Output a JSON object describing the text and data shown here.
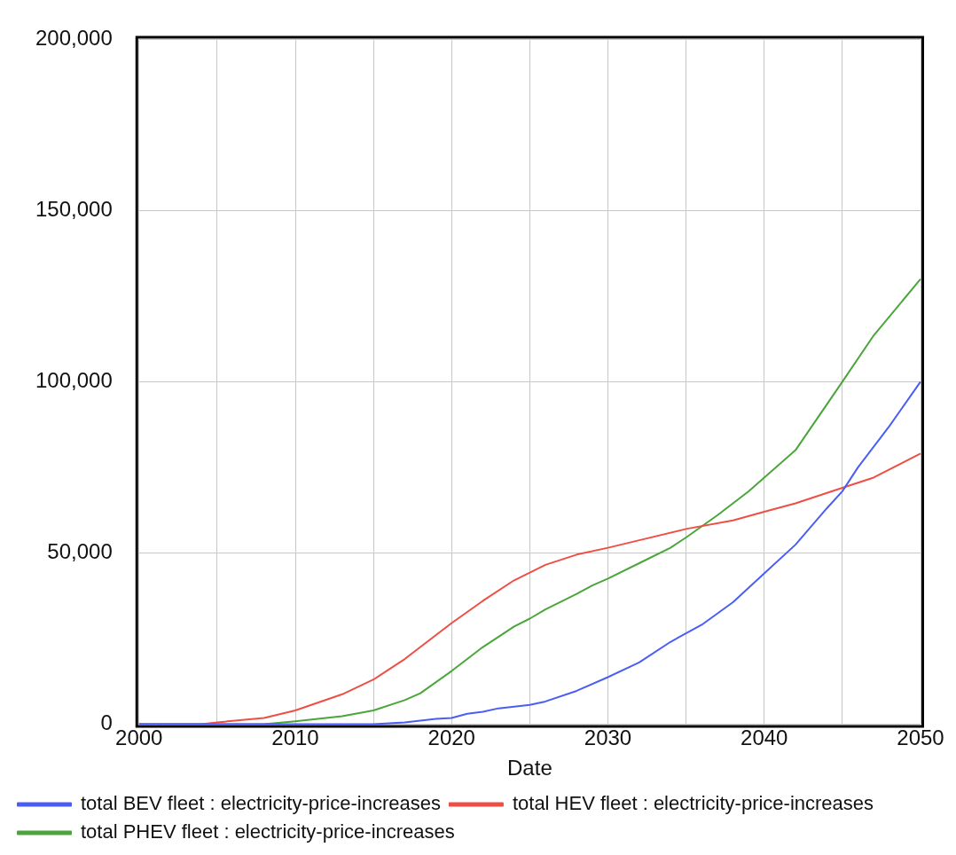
{
  "chart_data": {
    "type": "line",
    "xlabel": "Date",
    "xlim": [
      2000,
      2050
    ],
    "xticks": [
      2000,
      {
        "value": 2005,
        "label": null
      },
      2010,
      {
        "value": 2015,
        "label": null
      },
      2020,
      {
        "value": 2025,
        "label": null
      },
      2030,
      {
        "value": 2035,
        "label": null
      },
      2040,
      {
        "value": 2045,
        "label": null
      },
      2050
    ],
    "ylim": [
      0,
      200000
    ],
    "yticks": [
      {
        "value": 0,
        "label": "0"
      },
      {
        "value": 50000,
        "label": "50,000"
      },
      {
        "value": 100000,
        "label": "100,000"
      },
      {
        "value": 150000,
        "label": "150,000"
      },
      {
        "value": 200000,
        "label": "200,000"
      }
    ],
    "grid": true,
    "legend": "bottom",
    "marker": "none",
    "line_style": "solid",
    "series": [
      {
        "name": "total BEV fleet : electricity-price-increases",
        "color": "#4a5ef5",
        "x": [
          2000,
          2005,
          2010,
          2015,
          2017,
          2019,
          2020,
          2021,
          2022,
          2023,
          2025,
          2026,
          2028,
          2030,
          2032,
          2034,
          2036,
          2038,
          2040,
          2042,
          2044,
          2045,
          2046,
          2048,
          2050
        ],
        "values": [
          0,
          0,
          0,
          0,
          500,
          1500,
          1800,
          3000,
          3600,
          4600,
          5600,
          6600,
          9700,
          13700,
          18000,
          24000,
          29000,
          35600,
          44000,
          52400,
          63000,
          68000,
          75000,
          87000,
          100000
        ]
      },
      {
        "name": "total HEV fleet : electricity-price-increases",
        "color": "#ee4f44",
        "x": [
          2000,
          2004,
          2005,
          2008,
          2010,
          2013,
          2015,
          2017,
          2020,
          2022,
          2024,
          2026,
          2028,
          2030,
          2032,
          2035,
          2038,
          2040,
          2042,
          2045,
          2047,
          2050
        ],
        "values": [
          0,
          0,
          500,
          1800,
          4000,
          8700,
          13000,
          19000,
          29500,
          36000,
          42000,
          46500,
          49500,
          51500,
          53700,
          57000,
          59500,
          62000,
          64500,
          69000,
          72000,
          79000
        ]
      },
      {
        "name": "total PHEV fleet : electricity-price-increases",
        "color": "#4aa63a",
        "x": [
          2000,
          2008,
          2010,
          2013,
          2015,
          2017,
          2018,
          2020,
          2022,
          2024,
          2025,
          2026,
          2028,
          2029,
          2030,
          2032,
          2034,
          2035,
          2037,
          2039,
          2040,
          2042,
          2045,
          2047,
          2050
        ],
        "values": [
          0,
          0,
          800,
          2300,
          4000,
          7000,
          9000,
          15500,
          22500,
          28500,
          30800,
          33500,
          38000,
          40500,
          42500,
          47000,
          51500,
          54500,
          61000,
          68000,
          72000,
          80000,
          100000,
          113500,
          130000
        ]
      }
    ]
  }
}
